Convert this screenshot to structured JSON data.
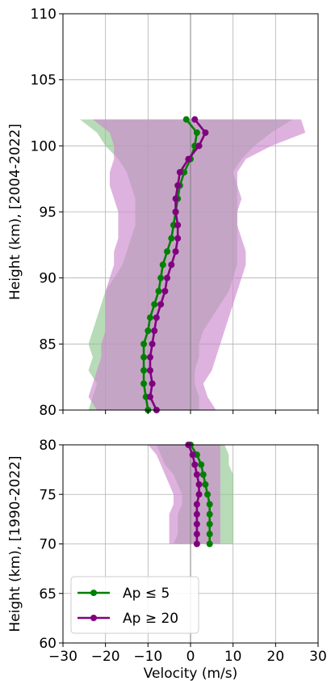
{
  "chart_data": [
    {
      "type": "line",
      "ylabel": "Height (km), [2004-2022]",
      "xlabel": "",
      "xlim": [
        -30,
        30
      ],
      "ylim": [
        80,
        110
      ],
      "xticks": [
        "",
        "",
        "",
        "",
        "",
        "",
        ""
      ],
      "yticks": [
        "80",
        "85",
        "90",
        "95",
        "100",
        "105",
        "110"
      ],
      "grid": true,
      "legend": null,
      "colors": {
        "low": "#008000",
        "high": "#800080",
        "low_band": "#90c890",
        "high_band": "#cc88cc"
      },
      "series": [
        {
          "name": "Ap ≤ 5",
          "color": "#008000",
          "heights": [
            80,
            81,
            82,
            83,
            84,
            85,
            86,
            87,
            88,
            89,
            90,
            91,
            92,
            93,
            94,
            95,
            96,
            97,
            98,
            99,
            100,
            101,
            102
          ],
          "values": [
            -10,
            -10.5,
            -11,
            -11,
            -11,
            -11,
            -10,
            -9.5,
            -8.5,
            -7.5,
            -7,
            -6.5,
            -5.5,
            -4.5,
            -4,
            -3.5,
            -3,
            -2.5,
            -1.5,
            0,
            1,
            1.5,
            -1
          ],
          "band_min": [
            -24,
            -23,
            -22,
            -24,
            -23,
            -24,
            -23,
            -22,
            -21,
            -20,
            -18,
            -16,
            -15,
            -14,
            -13,
            -13,
            -13,
            -14,
            -15,
            -17,
            -20,
            -22,
            -26
          ],
          "band_max": [
            2,
            2,
            1,
            1,
            2,
            2,
            3,
            5,
            7,
            9,
            10,
            11,
            11,
            11,
            11,
            11,
            11,
            11,
            10,
            12,
            15,
            19,
            24
          ]
        },
        {
          "name": "Ap ≥ 20",
          "color": "#800080",
          "heights": [
            80,
            81,
            82,
            83,
            84,
            85,
            86,
            87,
            88,
            89,
            90,
            91,
            92,
            93,
            94,
            95,
            96,
            97,
            98,
            99,
            100,
            101,
            102
          ],
          "values": [
            -8,
            -9.5,
            -9,
            -9.5,
            -9.5,
            -9,
            -8.5,
            -8,
            -7,
            -6,
            -5.5,
            -4.5,
            -3.5,
            -3,
            -3,
            -3.5,
            -3.5,
            -3,
            -2.5,
            -0.5,
            2,
            3.5,
            1
          ],
          "band_min": [
            -22,
            -24,
            -23,
            -22,
            -21,
            -21,
            -20,
            -20,
            -20,
            -20,
            -19,
            -18,
            -18,
            -17,
            -17,
            -17,
            -18,
            -19,
            -19,
            -18,
            -18,
            -19,
            -23
          ],
          "band_max": [
            6,
            4,
            3,
            5,
            6,
            7,
            8,
            9,
            10,
            11,
            12,
            13,
            13,
            12,
            11,
            11,
            12,
            11,
            11,
            13,
            19,
            27,
            26
          ]
        }
      ]
    },
    {
      "type": "line",
      "ylabel": "Height (km), [1990-2022]",
      "xlabel": "Velocity (m/s)",
      "xlim": [
        -30,
        30
      ],
      "ylim": [
        60,
        80
      ],
      "xticks": [
        "−30",
        "−20",
        "−10",
        "0",
        "10",
        "20",
        "30"
      ],
      "yticks": [
        "60",
        "65",
        "70",
        "75",
        "80"
      ],
      "grid": true,
      "legend": "lower-left",
      "colors": {
        "low": "#008000",
        "high": "#800080",
        "low_band": "#90c890",
        "high_band": "#cc88cc"
      },
      "series": [
        {
          "name": "Ap ≤ 5",
          "color": "#008000",
          "heights": [
            70,
            71,
            72,
            73,
            74,
            75,
            76,
            77,
            78,
            79,
            80
          ],
          "values": [
            4.5,
            4.5,
            4.5,
            4.5,
            4.5,
            4,
            3.5,
            3,
            2.5,
            1.5,
            0
          ],
          "band_min": [
            -4,
            -3,
            -3,
            -3,
            -2,
            -2,
            -3,
            -4,
            -6,
            -7,
            -8
          ],
          "band_max": [
            10,
            10,
            10,
            10,
            10,
            10,
            10,
            10,
            9,
            9,
            8
          ]
        },
        {
          "name": "Ap ≥ 20",
          "color": "#800080",
          "heights": [
            70,
            71,
            72,
            73,
            74,
            75,
            76,
            77,
            78,
            79,
            80
          ],
          "values": [
            1.5,
            1.5,
            1.5,
            1.5,
            1.5,
            2,
            2,
            1.5,
            1,
            0.5,
            -0.5
          ],
          "band_min": [
            -5,
            -5,
            -5,
            -5,
            -4,
            -4,
            -5,
            -6,
            -7,
            -8,
            -10
          ],
          "band_max": [
            7,
            7,
            7,
            7,
            7,
            7,
            7,
            7,
            7,
            7,
            7
          ]
        }
      ]
    }
  ]
}
